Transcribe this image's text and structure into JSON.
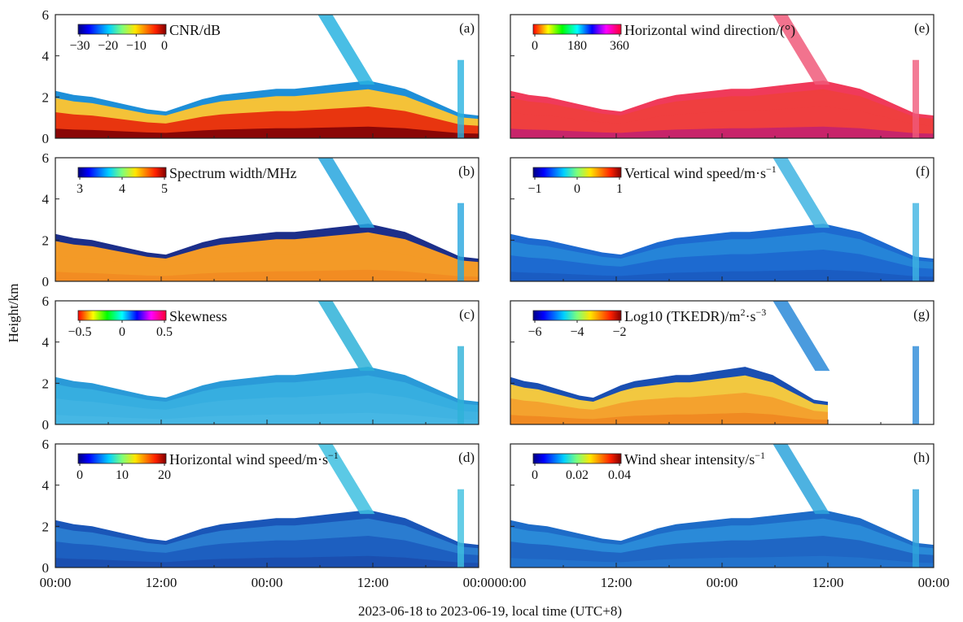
{
  "figure": {
    "ylabel": "Height/km",
    "xlabel": "2023-06-18 to 2023-06-19, local time (UTC+8)",
    "x_ticks": [
      "00:00",
      "12:00",
      "00:00",
      "12:00",
      "00:00"
    ],
    "y_ticks": [
      "0",
      "2",
      "4",
      "6"
    ]
  },
  "chart_data": [
    {
      "id": "a",
      "type": "heatmap",
      "label": "(a)",
      "title": "CNR/dB",
      "colormap": "jet",
      "colorbar_ticks": [
        "−30",
        "−20",
        "−10",
        "0"
      ],
      "clim": [
        -35,
        0
      ],
      "x_ticks": [
        "00:00",
        "12:00",
        "00:00",
        "12:00",
        "00:00"
      ],
      "ylabel": "Height/km",
      "ylim": [
        0,
        6
      ]
    },
    {
      "id": "b",
      "type": "heatmap",
      "label": "(b)",
      "title": "Spectrum width/MHz",
      "colormap": "jet",
      "colorbar_ticks": [
        "3",
        "4",
        "5"
      ],
      "clim": [
        3,
        5
      ],
      "x_ticks": [
        "00:00",
        "12:00",
        "00:00",
        "12:00",
        "00:00"
      ],
      "ylabel": "Height/km",
      "ylim": [
        0,
        6
      ]
    },
    {
      "id": "c",
      "type": "heatmap",
      "label": "(c)",
      "title": "Skewness",
      "colormap": "hsv",
      "colorbar_ticks": [
        "−0.5",
        "0",
        "0.5"
      ],
      "clim": [
        -0.5,
        0.5
      ],
      "x_ticks": [
        "00:00",
        "12:00",
        "00:00",
        "12:00",
        "00:00"
      ],
      "ylabel": "Height/km",
      "ylim": [
        0,
        6
      ]
    },
    {
      "id": "d",
      "type": "heatmap",
      "label": "(d)",
      "title": "Horizontal wind speed/m·s",
      "title_sup": "−1",
      "colormap": "jet",
      "colorbar_ticks": [
        "0",
        "10",
        "20"
      ],
      "clim": [
        0,
        20
      ],
      "x_ticks": [
        "00:00",
        "12:00",
        "00:00",
        "12:00",
        "00:00"
      ],
      "ylabel": "Height/km",
      "ylim": [
        0,
        6
      ]
    },
    {
      "id": "e",
      "type": "heatmap",
      "label": "(e)",
      "title": "Horizontal wind direction/(°)",
      "colormap": "hsv",
      "colorbar_ticks": [
        "0",
        "180",
        "360"
      ],
      "clim": [
        0,
        360
      ],
      "x_ticks": [
        "00:00",
        "12:00",
        "00:00",
        "12:00",
        "00:00"
      ],
      "ylabel": "Height/km",
      "ylim": [
        0,
        6
      ]
    },
    {
      "id": "f",
      "type": "heatmap",
      "label": "(f)",
      "title": "Vertical wind speed/m·s",
      "title_sup": "−1",
      "colormap": "jet",
      "colorbar_ticks": [
        "−1",
        "0",
        "1"
      ],
      "clim": [
        -1,
        1
      ],
      "x_ticks": [
        "00:00",
        "12:00",
        "00:00",
        "12:00",
        "00:00"
      ],
      "ylabel": "Height/km",
      "ylim": [
        0,
        6
      ]
    },
    {
      "id": "g",
      "type": "heatmap",
      "label": "(g)",
      "title": "Log10 (TKEDR)/m",
      "title_sup": "2",
      "title_mid": "·s",
      "title_sup2": "−3",
      "colormap": "jet",
      "colorbar_ticks": [
        "−6",
        "−4",
        "−2"
      ],
      "clim": [
        -7,
        -1
      ],
      "x_ticks": [
        "00:00",
        "12:00",
        "00:00",
        "12:00",
        "00:00"
      ],
      "ylabel": "Height/km",
      "ylim": [
        0,
        6
      ]
    },
    {
      "id": "h",
      "type": "heatmap",
      "label": "(h)",
      "title": "Wind shear intensity/s",
      "title_sup": "−1",
      "colormap": "jet",
      "colorbar_ticks": [
        "0",
        "0.02",
        "0.04"
      ],
      "clim": [
        0,
        0.05
      ],
      "x_ticks": [
        "00:00",
        "12:00",
        "00:00",
        "12:00",
        "00:00"
      ],
      "ylabel": "Height/km",
      "ylim": [
        0,
        6
      ]
    }
  ]
}
